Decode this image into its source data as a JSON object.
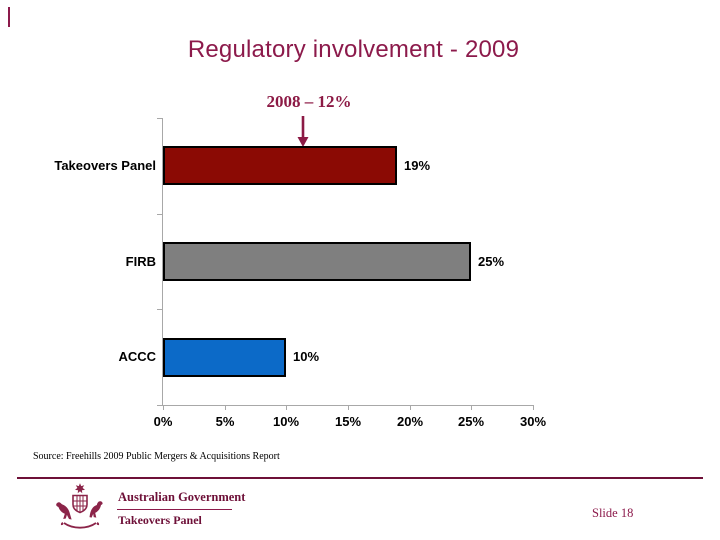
{
  "slide": {
    "title": "Regulatory involvement - 2009",
    "source": "Source: Freehills 2009 Public Mergers & Acquisitions Report",
    "slide_number": "Slide 18"
  },
  "footer": {
    "gov_label": "Australian Government",
    "panel_label": "Takeovers Panel",
    "crest_icon": "australian-coat-of-arms"
  },
  "colors": {
    "accent_maroon": "#8C1A4B",
    "footer_maroon": "#6E1038",
    "bar_red": "#8B0A04",
    "bar_gray": "#7F7F7F",
    "bar_blue": "#0C6AC8",
    "axis_gray": "#A8A8A8",
    "bar_border": "#000000"
  },
  "chart_data": {
    "type": "bar",
    "orientation": "horizontal",
    "title": "Regulatory involvement - 2009",
    "categories": [
      "Takeovers Panel",
      "FIRB",
      "ACCC"
    ],
    "values": [
      19,
      25,
      10
    ],
    "value_labels": [
      "19%",
      "25%",
      "10%"
    ],
    "bar_colors": [
      "#8B0A04",
      "#7F7F7F",
      "#0C6AC8"
    ],
    "x_ticks": [
      "0%",
      "5%",
      "10%",
      "15%",
      "20%",
      "25%",
      "30%"
    ],
    "xlim": [
      0,
      30
    ],
    "grid": false,
    "legend": false,
    "annotation": {
      "text": "2008 – 12%",
      "points_to": "Takeovers Panel"
    }
  }
}
